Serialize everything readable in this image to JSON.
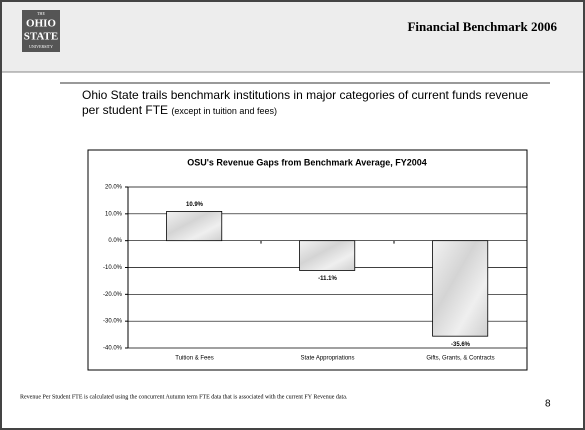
{
  "header": {
    "title": "Financial Benchmark 2006",
    "logo": [
      "THE",
      "OHIO",
      "STATE",
      "UNIVERSITY"
    ]
  },
  "headline": "Ohio State trails benchmark institutions in major categories of current funds revenue per student FTE",
  "headline_note": "(except in tuition and fees)",
  "footnote": "Revenue Per Student FTE is calculated using the concurrent Autumn term FTE data that is associated with the current FY Revenue data.",
  "page_number": "8",
  "chart_data": {
    "type": "bar",
    "title": "OSU's Revenue Gaps from Benchmark Average, FY2004",
    "categories": [
      "Tuition & Fees",
      "State Appropriations",
      "Gifts, Grants, & Contracts"
    ],
    "values": [
      10.9,
      -11.1,
      -35.6
    ],
    "value_labels": [
      "10.9%",
      "-11.1%",
      "-35.6%"
    ],
    "color": "#dcdcdc",
    "ylim": [
      -40,
      20
    ],
    "yticks": [
      {
        "value": -40,
        "label": "-40.0%"
      },
      {
        "value": -30,
        "label": "-30.0%"
      },
      {
        "value": -20,
        "label": "-20.0%"
      },
      {
        "value": -10,
        "label": "-10.0%"
      },
      {
        "value": 0,
        "label": "0.0%"
      },
      {
        "value": 10,
        "label": "10.0%"
      },
      {
        "value": 20,
        "label": "20.0%"
      }
    ],
    "grid": true
  }
}
